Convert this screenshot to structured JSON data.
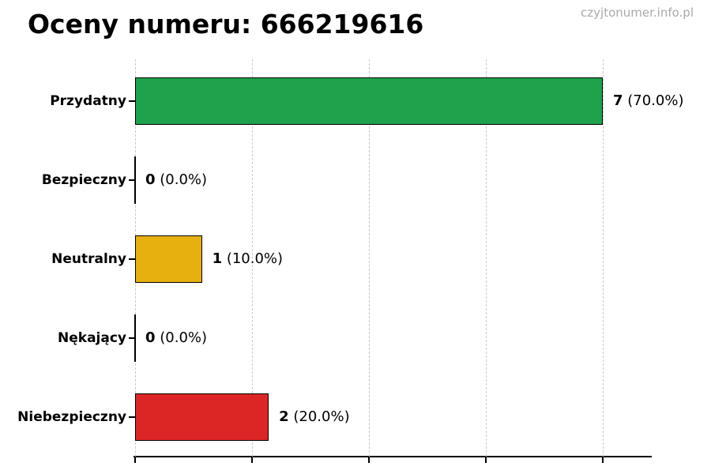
{
  "header": {
    "title": "Oceny numeru: 666219616",
    "watermark": "czyjtonumer.info.pl"
  },
  "chart_data": {
    "type": "bar",
    "orientation": "horizontal",
    "title": "Oceny numeru: 666219616",
    "categories": [
      "Przydatny",
      "Bezpieczny",
      "Neutralny",
      "Nękający",
      "Niebezpieczny"
    ],
    "values": [
      7,
      0,
      1,
      0,
      2
    ],
    "percent_labels": [
      "(70.0%)",
      "(0.0%)",
      "(10.0%)",
      "(0.0%)",
      "(20.0%)"
    ],
    "bar_colors": [
      "#1ea24c",
      "#000000",
      "#e6b00e",
      "#000000",
      "#dc2626"
    ],
    "xlim": [
      0,
      7.73
    ],
    "gridlines_at": [
      0,
      1.75,
      3.5,
      5.25,
      7
    ],
    "grid": true,
    "legend": "none",
    "xlabel": "",
    "ylabel": "",
    "x_tick_labels": []
  }
}
